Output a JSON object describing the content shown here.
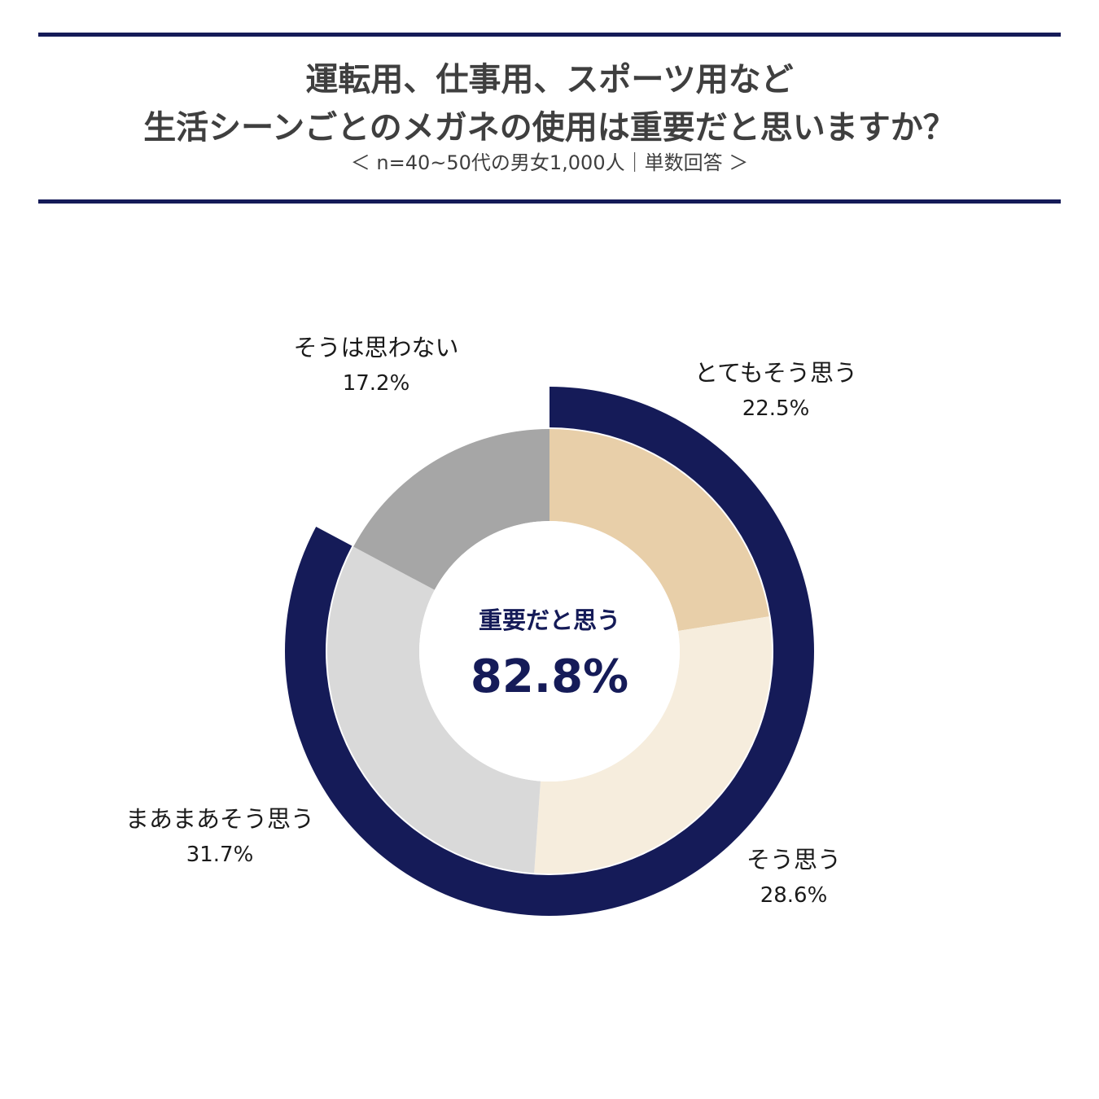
{
  "header": {
    "title_line1": "運転用、仕事用、スポーツ用など",
    "title_line2": "生活シーンごとのメガネの使用は重要だと思いますか？",
    "subtitle": "＜ n=40~50代の男女1,000人｜単数回答 ＞"
  },
  "center": {
    "label": "重要だと思う",
    "value": "82.8%"
  },
  "colors": {
    "accent": "#151b58",
    "text": "#3f3f3f"
  },
  "chart_data": {
    "type": "pie",
    "subtype": "donut",
    "categories": [
      "とてもそう思う",
      "そう思う",
      "まあまあそう思う",
      "そうは思わない"
    ],
    "values": [
      22.5,
      28.6,
      31.7,
      17.2
    ],
    "value_labels": [
      "22.5%",
      "28.6%",
      "31.7%",
      "17.2%"
    ],
    "colors": [
      "#e8cfa9",
      "#f6eddd",
      "#d9d9d9",
      "#a6a6a6"
    ],
    "outer_ring": {
      "label": "重要だと思う",
      "value": 82.8,
      "value_label": "82.8%",
      "color": "#151b58"
    },
    "start": "12 o'clock",
    "direction": "clockwise"
  }
}
